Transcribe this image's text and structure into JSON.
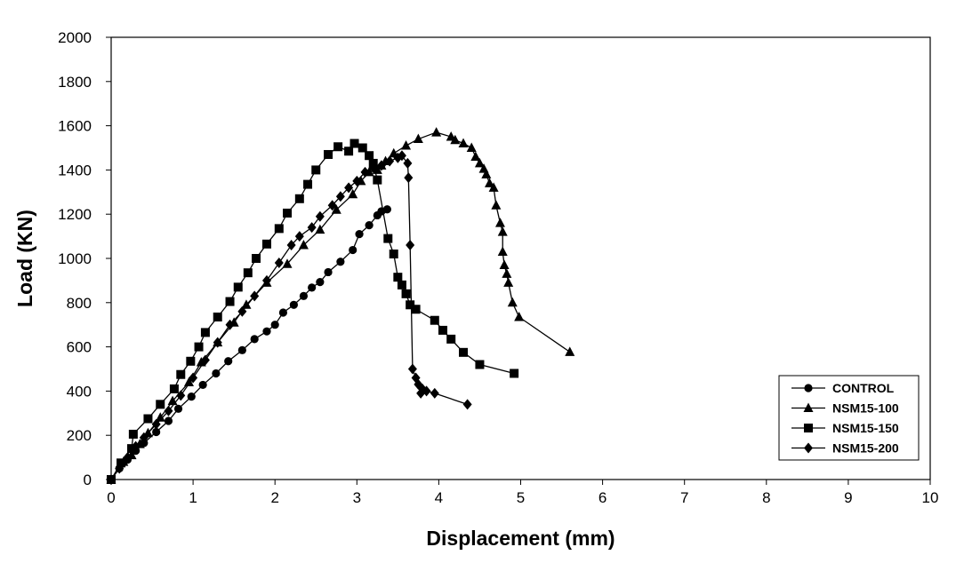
{
  "chart_data": {
    "type": "line",
    "title": "",
    "xlabel": "Displacement (mm)",
    "ylabel": "Load (KN)",
    "xlim": [
      0,
      10
    ],
    "ylim": [
      0,
      2000
    ],
    "xticks": [
      "0",
      "1",
      "2",
      "3",
      "4",
      "5",
      "6",
      "7",
      "8",
      "9",
      "10"
    ],
    "yticks": [
      "0",
      "200",
      "400",
      "600",
      "800",
      "1000",
      "1200",
      "1400",
      "1600",
      "1800",
      "2000"
    ],
    "grid": false,
    "legend_position": "bottom-right",
    "series": [
      {
        "name": "CONTROL",
        "marker": "circle",
        "points": [
          [
            0,
            0
          ],
          [
            0.1,
            50
          ],
          [
            0.2,
            90
          ],
          [
            0.3,
            130
          ],
          [
            0.4,
            165
          ],
          [
            0.55,
            215
          ],
          [
            0.7,
            265
          ],
          [
            0.82,
            320
          ],
          [
            0.98,
            375
          ],
          [
            1.12,
            428
          ],
          [
            1.28,
            480
          ],
          [
            1.43,
            535
          ],
          [
            1.6,
            585
          ],
          [
            1.75,
            635
          ],
          [
            1.9,
            670
          ],
          [
            2.0,
            700
          ],
          [
            2.1,
            755
          ],
          [
            2.23,
            790
          ],
          [
            2.35,
            830
          ],
          [
            2.45,
            868
          ],
          [
            2.55,
            893
          ],
          [
            2.65,
            938
          ],
          [
            2.8,
            985
          ],
          [
            2.95,
            1038
          ],
          [
            3.03,
            1110
          ],
          [
            3.15,
            1150
          ],
          [
            3.25,
            1195
          ],
          [
            3.3,
            1213
          ],
          [
            3.37,
            1222
          ]
        ]
      },
      {
        "name": "NSM15-100",
        "marker": "triangle",
        "points": [
          [
            0,
            0
          ],
          [
            0.15,
            80
          ],
          [
            0.25,
            110
          ],
          [
            0.35,
            160
          ],
          [
            0.45,
            210
          ],
          [
            0.6,
            280
          ],
          [
            0.75,
            355
          ],
          [
            0.95,
            440
          ],
          [
            1.1,
            530
          ],
          [
            1.3,
            620
          ],
          [
            1.5,
            710
          ],
          [
            1.65,
            790
          ],
          [
            1.9,
            890
          ],
          [
            2.15,
            975
          ],
          [
            2.35,
            1060
          ],
          [
            2.55,
            1130
          ],
          [
            2.75,
            1220
          ],
          [
            2.95,
            1290
          ],
          [
            3.05,
            1350
          ],
          [
            3.15,
            1390
          ],
          [
            3.25,
            1400
          ],
          [
            3.3,
            1420
          ],
          [
            3.35,
            1440
          ],
          [
            3.45,
            1475
          ],
          [
            3.6,
            1510
          ],
          [
            3.75,
            1540
          ],
          [
            3.97,
            1570
          ],
          [
            4.15,
            1550
          ],
          [
            4.2,
            1535
          ],
          [
            4.3,
            1520
          ],
          [
            4.4,
            1500
          ],
          [
            4.45,
            1460
          ],
          [
            4.5,
            1430
          ],
          [
            4.55,
            1405
          ],
          [
            4.58,
            1380
          ],
          [
            4.62,
            1340
          ],
          [
            4.67,
            1320
          ],
          [
            4.7,
            1240
          ],
          [
            4.75,
            1160
          ],
          [
            4.78,
            1120
          ],
          [
            4.78,
            1030
          ],
          [
            4.8,
            970
          ],
          [
            4.83,
            930
          ],
          [
            4.85,
            890
          ],
          [
            4.9,
            800
          ],
          [
            4.98,
            735
          ],
          [
            5.6,
            577
          ]
        ]
      },
      {
        "name": "NSM15-150",
        "marker": "square",
        "points": [
          [
            0,
            0
          ],
          [
            0.12,
            75
          ],
          [
            0.25,
            140
          ],
          [
            0.27,
            205
          ],
          [
            0.45,
            275
          ],
          [
            0.6,
            340
          ],
          [
            0.77,
            410
          ],
          [
            0.85,
            475
          ],
          [
            0.97,
            535
          ],
          [
            1.07,
            600
          ],
          [
            1.15,
            665
          ],
          [
            1.3,
            735
          ],
          [
            1.45,
            805
          ],
          [
            1.55,
            870
          ],
          [
            1.67,
            935
          ],
          [
            1.77,
            1000
          ],
          [
            1.9,
            1065
          ],
          [
            2.05,
            1135
          ],
          [
            2.15,
            1205
          ],
          [
            2.3,
            1270
          ],
          [
            2.4,
            1335
          ],
          [
            2.5,
            1400
          ],
          [
            2.65,
            1470
          ],
          [
            2.77,
            1505
          ],
          [
            2.9,
            1485
          ],
          [
            2.97,
            1520
          ],
          [
            3.07,
            1500
          ],
          [
            3.15,
            1465
          ],
          [
            3.2,
            1430
          ],
          [
            3.25,
            1355
          ],
          [
            3.38,
            1090
          ],
          [
            3.45,
            1020
          ],
          [
            3.5,
            915
          ],
          [
            3.55,
            880
          ],
          [
            3.6,
            840
          ],
          [
            3.65,
            790
          ],
          [
            3.72,
            770
          ],
          [
            3.95,
            720
          ],
          [
            4.05,
            675
          ],
          [
            4.15,
            635
          ],
          [
            4.3,
            575
          ],
          [
            4.5,
            520
          ],
          [
            4.92,
            480
          ]
        ]
      },
      {
        "name": "NSM15-200",
        "marker": "diamond",
        "points": [
          [
            0,
            0
          ],
          [
            0.1,
            50
          ],
          [
            0.2,
            100
          ],
          [
            0.3,
            150
          ],
          [
            0.4,
            190
          ],
          [
            0.55,
            250
          ],
          [
            0.7,
            310
          ],
          [
            0.85,
            380
          ],
          [
            1.0,
            460
          ],
          [
            1.15,
            540
          ],
          [
            1.3,
            620
          ],
          [
            1.45,
            700
          ],
          [
            1.6,
            760
          ],
          [
            1.75,
            830
          ],
          [
            1.9,
            900
          ],
          [
            2.05,
            980
          ],
          [
            2.2,
            1060
          ],
          [
            2.3,
            1100
          ],
          [
            2.45,
            1140
          ],
          [
            2.55,
            1190
          ],
          [
            2.7,
            1240
          ],
          [
            2.8,
            1280
          ],
          [
            2.9,
            1320
          ],
          [
            3.0,
            1350
          ],
          [
            3.1,
            1390
          ],
          [
            3.2,
            1410
          ],
          [
            3.3,
            1420
          ],
          [
            3.4,
            1440
          ],
          [
            3.5,
            1455
          ],
          [
            3.55,
            1465
          ],
          [
            3.62,
            1430
          ],
          [
            3.63,
            1365
          ],
          [
            3.65,
            1060
          ],
          [
            3.68,
            500
          ],
          [
            3.72,
            460
          ],
          [
            3.75,
            430
          ],
          [
            3.8,
            410
          ],
          [
            3.78,
            390
          ],
          [
            3.85,
            400
          ],
          [
            3.95,
            390
          ],
          [
            4.35,
            340
          ]
        ]
      }
    ]
  }
}
